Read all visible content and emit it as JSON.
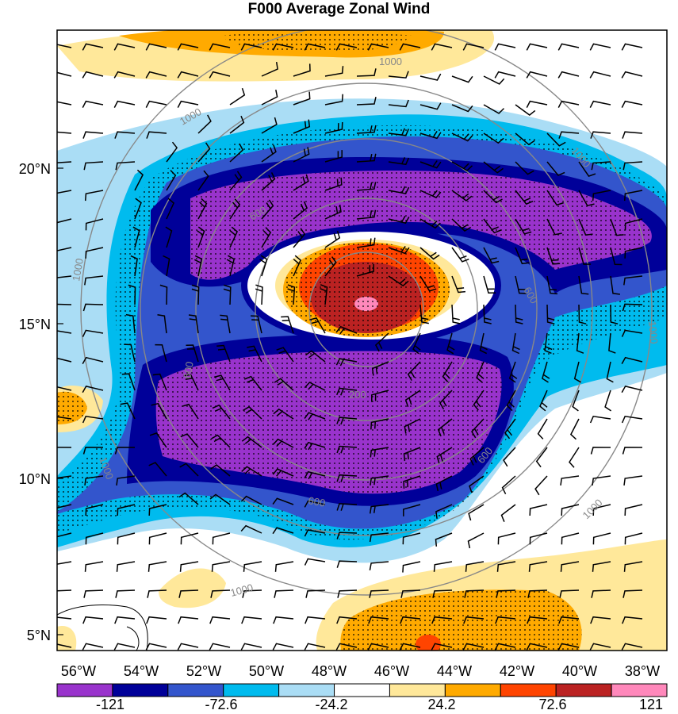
{
  "title": "F000 Average Zonal Wind",
  "lat_labels": [
    "20°N",
    "15°N",
    "10°N",
    "5°N"
  ],
  "lon_labels": [
    "56°W",
    "54°W",
    "52°W",
    "50°W",
    "48°W",
    "46°W",
    "44°W",
    "42°W",
    "40°W",
    "38°W"
  ],
  "range_ring_labels": [
    "1000",
    "1000",
    "1000",
    "1000",
    "1000",
    "1000",
    "1000",
    "1000",
    "600",
    "600",
    "600",
    "600",
    "600",
    "600",
    "200"
  ],
  "colorbar": {
    "colors": [
      "#9933cc",
      "#000099",
      "#3355cc",
      "#00bbee",
      "#aaddf5",
      "#ffffff",
      "#ffe89a",
      "#ffaa00",
      "#ff4400",
      "#bb2222",
      "#ff88bb"
    ],
    "labels": [
      "-121",
      "-72.6",
      "-24.2",
      "24.2",
      "72.6",
      "121"
    ]
  }
}
